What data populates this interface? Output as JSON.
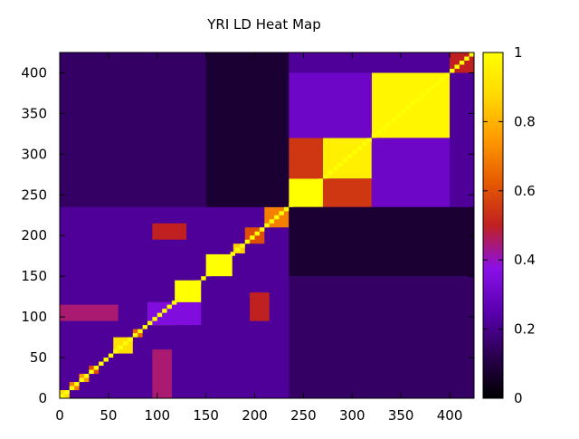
{
  "chart_data": {
    "type": "heatmap",
    "title": "YRI LD Heat Map",
    "xlabel": "",
    "ylabel": "",
    "x_range": [
      0,
      425
    ],
    "y_range": [
      0,
      425
    ],
    "xlim": [
      0,
      425
    ],
    "ylim": [
      0,
      425
    ],
    "x_ticks": [
      "0",
      "50",
      "100",
      "150",
      "200",
      "250",
      "300",
      "350",
      "400"
    ],
    "y_ticks": [
      "0",
      "50",
      "100",
      "150",
      "200",
      "250",
      "300",
      "350",
      "400"
    ],
    "colorbar": {
      "min": 0,
      "max": 1,
      "ticks": [
        "0",
        "0.2",
        "0.4",
        "0.6",
        "0.8",
        "1"
      ],
      "palette": [
        "#000000",
        "#2a0050",
        "#5a00b0",
        "#8a10e8",
        "#c02020",
        "#e65a00",
        "#ff9a00",
        "#ffd800",
        "#ffff00"
      ]
    },
    "symmetric": true,
    "diagonal_value": 1.0,
    "background_value": 0.22,
    "blocks": [
      {
        "x": [
          0,
          10
        ],
        "y": [
          0,
          10
        ],
        "value": 0.9
      },
      {
        "x": [
          10,
          20
        ],
        "y": [
          10,
          20
        ],
        "value": 0.7
      },
      {
        "x": [
          20,
          30
        ],
        "y": [
          20,
          30
        ],
        "value": 0.75
      },
      {
        "x": [
          30,
          40
        ],
        "y": [
          30,
          40
        ],
        "value": 0.6
      },
      {
        "x": [
          55,
          75
        ],
        "y": [
          55,
          75
        ],
        "value": 0.9
      },
      {
        "x": [
          75,
          85
        ],
        "y": [
          75,
          85
        ],
        "value": 0.65
      },
      {
        "x": [
          90,
          118
        ],
        "y": [
          90,
          118
        ],
        "value": 0.95
      },
      {
        "x": [
          118,
          145
        ],
        "y": [
          118,
          145
        ],
        "value": 1.0
      },
      {
        "x": [
          150,
          177
        ],
        "y": [
          150,
          177
        ],
        "value": 1.0
      },
      {
        "x": [
          178,
          190
        ],
        "y": [
          178,
          190
        ],
        "value": 0.85
      },
      {
        "x": [
          190,
          210
        ],
        "y": [
          190,
          210
        ],
        "value": 0.6
      },
      {
        "x": [
          210,
          235
        ],
        "y": [
          210,
          235
        ],
        "value": 0.7
      },
      {
        "x": [
          235,
          270
        ],
        "y": [
          235,
          270
        ],
        "value": 1.0
      },
      {
        "x": [
          270,
          320
        ],
        "y": [
          270,
          320
        ],
        "value": 0.95
      },
      {
        "x": [
          320,
          400
        ],
        "y": [
          320,
          400
        ],
        "value": 0.97
      },
      {
        "x": [
          400,
          425
        ],
        "y": [
          400,
          425
        ],
        "value": 0.5
      },
      {
        "x": [
          235,
          270
        ],
        "y": [
          270,
          320
        ],
        "value": 0.55
      },
      {
        "x": [
          270,
          320
        ],
        "y": [
          235,
          270
        ],
        "value": 0.55
      },
      {
        "x": [
          235,
          320
        ],
        "y": [
          320,
          400
        ],
        "value": 0.3
      },
      {
        "x": [
          320,
          400
        ],
        "y": [
          235,
          320
        ],
        "value": 0.3
      },
      {
        "x": [
          90,
          145
        ],
        "y": [
          90,
          118
        ],
        "value": 0.35
      },
      {
        "x": [
          0,
          60
        ],
        "y": [
          95,
          115
        ],
        "value": 0.45
      },
      {
        "x": [
          95,
          115
        ],
        "y": [
          0,
          60
        ],
        "value": 0.45
      },
      {
        "x": [
          95,
          130
        ],
        "y": [
          195,
          215
        ],
        "value": 0.5
      },
      {
        "x": [
          195,
          215
        ],
        "y": [
          95,
          130
        ],
        "value": 0.5
      },
      {
        "x": [
          150,
          235
        ],
        "y": [
          235,
          425
        ],
        "value": 0.08
      },
      {
        "x": [
          235,
          425
        ],
        "y": [
          150,
          235
        ],
        "value": 0.08
      },
      {
        "x": [
          0,
          150
        ],
        "y": [
          235,
          425
        ],
        "value": 0.15
      },
      {
        "x": [
          235,
          425
        ],
        "y": [
          0,
          150
        ],
        "value": 0.15
      }
    ]
  }
}
